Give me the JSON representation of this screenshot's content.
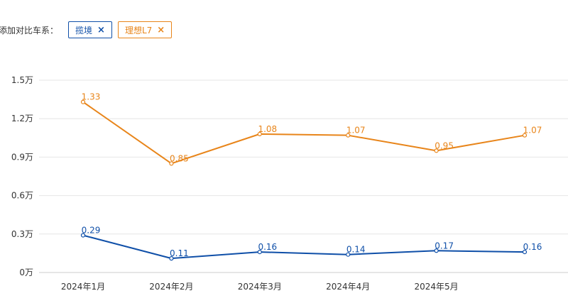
{
  "filter": {
    "label": "添加对比车系：",
    "tags": [
      {
        "label": "揽境",
        "color": "#0f4fa8",
        "close_icon": "×"
      },
      {
        "label": "理想L7",
        "color": "#e8851a",
        "close_icon": "×"
      }
    ]
  },
  "chart_data": {
    "type": "line",
    "categories": [
      "2024年1月",
      "2024年2月",
      "2024年3月",
      "2024年4月",
      "2024年5月",
      ""
    ],
    "y_ticks": [
      "0万",
      "0.3万",
      "0.6万",
      "0.9万",
      "1.2万",
      "1.5万"
    ],
    "ylim": [
      0,
      1.5
    ],
    "grid": true,
    "series": [
      {
        "name": "理想L7",
        "color": "#e8851a",
        "values": [
          1.33,
          0.85,
          1.08,
          1.07,
          0.95,
          1.07
        ],
        "labels": [
          "1.33",
          "0.85",
          "1.08",
          "1.07",
          "0.95",
          "1.07"
        ]
      },
      {
        "name": "揽境",
        "color": "#0f4fa8",
        "values": [
          0.29,
          0.11,
          0.16,
          0.14,
          0.17,
          0.16
        ],
        "labels": [
          "0.29",
          "0.11",
          "0.16",
          "0.14",
          "0.17",
          "0.16"
        ]
      }
    ]
  }
}
